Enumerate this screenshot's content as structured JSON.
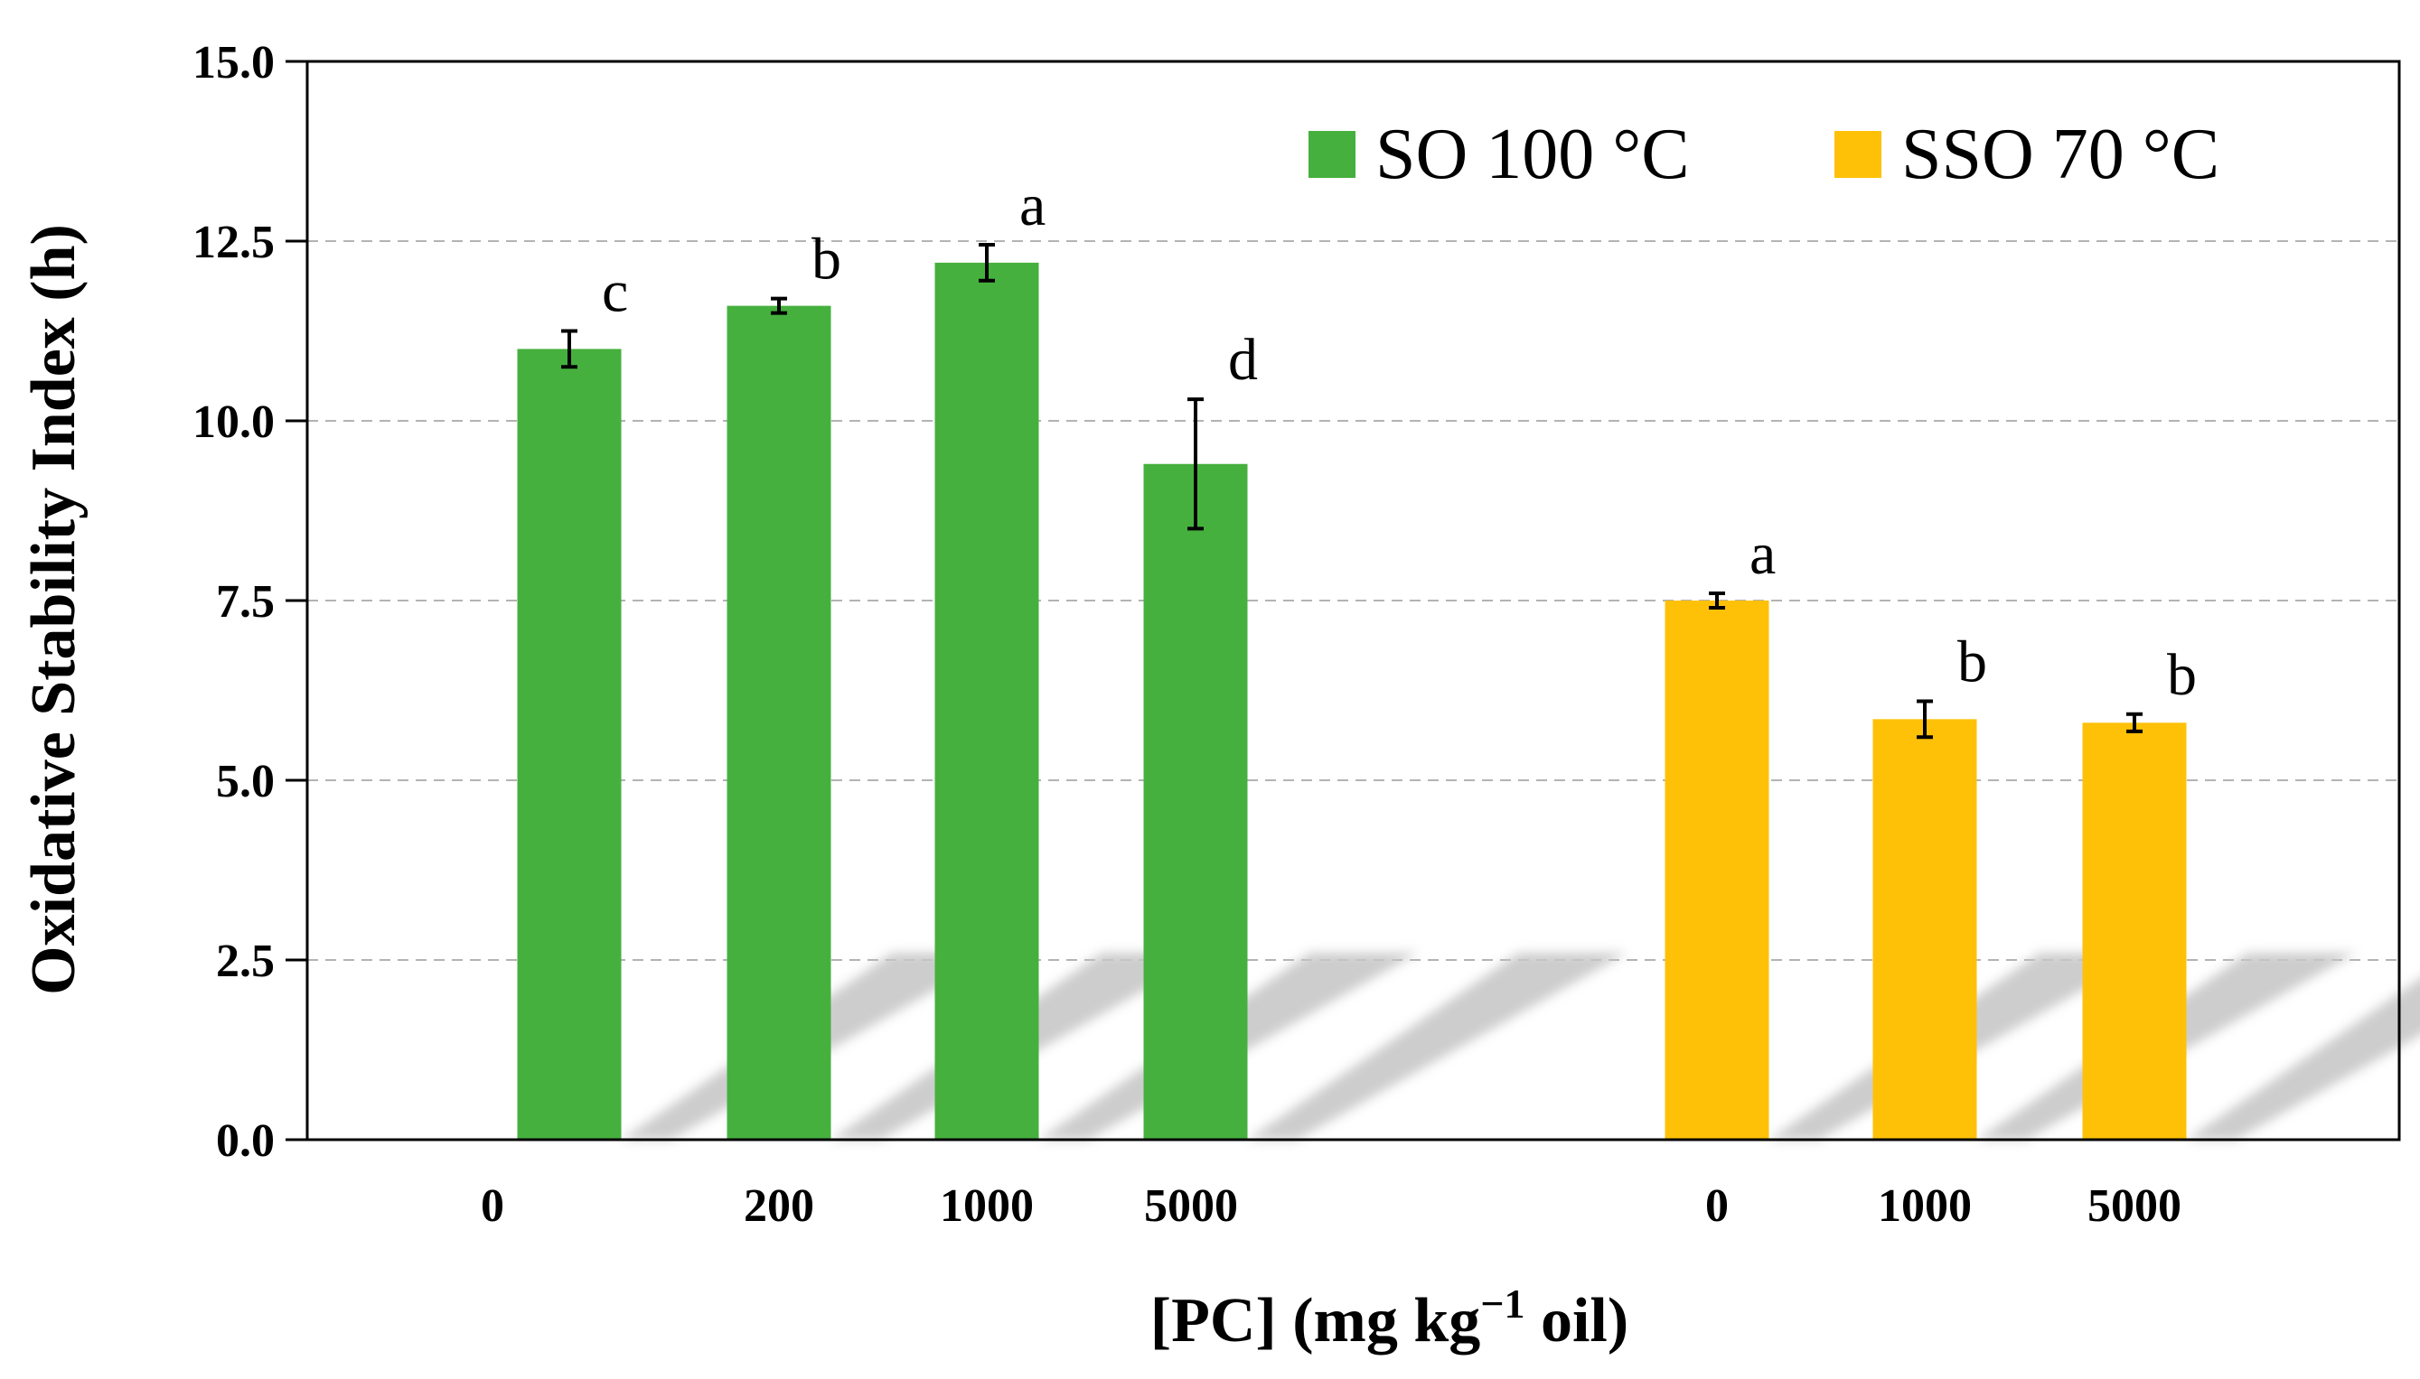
{
  "chart_data": {
    "type": "bar",
    "title": "",
    "ylabel": "Oxidative Stability Index (h)",
    "xlabel_parts": {
      "main": "[PC] (mg kg",
      "superscript": "−1",
      "suffix": " oil)"
    },
    "ylim": [
      0,
      15
    ],
    "yticks": [
      "0.0",
      "2.5",
      "5.0",
      "7.5",
      "10.0",
      "12.5",
      "15.0"
    ],
    "ytick_values": [
      0,
      2.5,
      5,
      7.5,
      10,
      12.5,
      15
    ],
    "grid": true,
    "legend_position": "top-right",
    "series": [
      {
        "name": "SO 100 °C",
        "color": "#46b03e",
        "categories": [
          "0",
          "200",
          "1000",
          "5000"
        ],
        "values": [
          11.0,
          11.6,
          12.2,
          9.4
        ],
        "errors": [
          0.25,
          0.1,
          0.25,
          0.9
        ],
        "significance": [
          "c",
          "b",
          "a",
          "d"
        ]
      },
      {
        "name": "SSO 70 °C",
        "color": "#fec107",
        "categories": [
          "0",
          "1000",
          "5000"
        ],
        "values": [
          7.5,
          5.85,
          5.8
        ],
        "errors": [
          0.1,
          0.25,
          0.12
        ],
        "significance": [
          "a",
          "b",
          "b"
        ]
      }
    ]
  }
}
